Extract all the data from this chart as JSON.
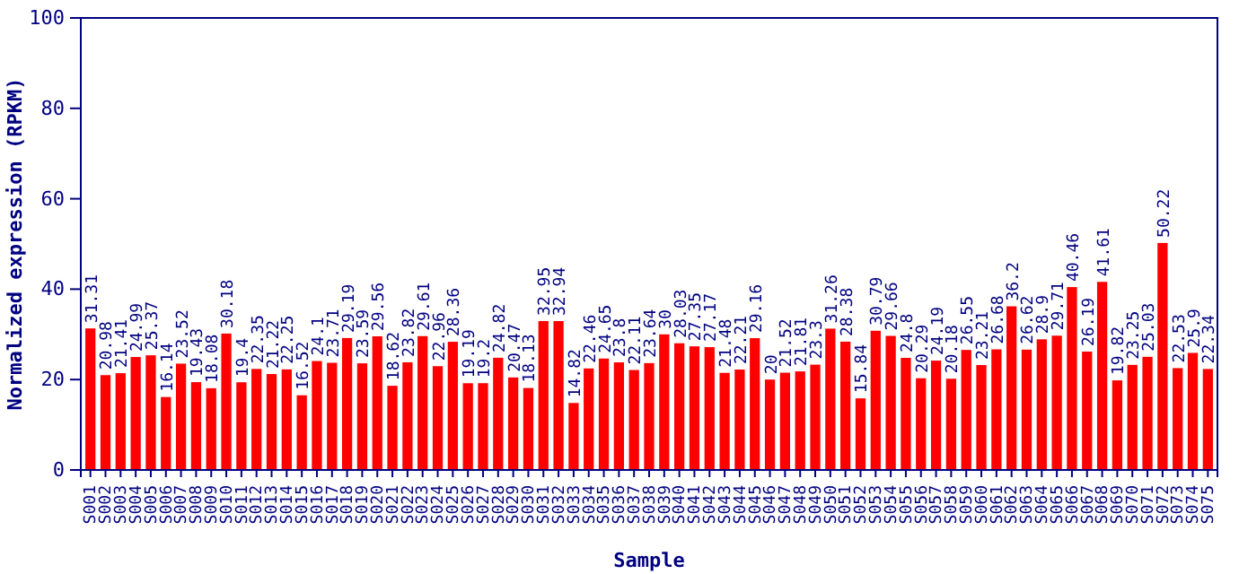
{
  "chart_data": {
    "type": "bar",
    "xlabel": "Sample",
    "ylabel": "Normalized expression (RPKM)",
    "categories": [
      "S001",
      "S002",
      "S003",
      "S004",
      "S005",
      "S006",
      "S007",
      "S008",
      "S009",
      "S010",
      "S011",
      "S012",
      "S013",
      "S014",
      "S015",
      "S016",
      "S017",
      "S018",
      "S019",
      "S020",
      "S021",
      "S022",
      "S023",
      "S024",
      "S025",
      "S026",
      "S027",
      "S028",
      "S029",
      "S030",
      "S031",
      "S032",
      "S033",
      "S034",
      "S035",
      "S036",
      "S037",
      "S038",
      "S039",
      "S040",
      "S041",
      "S042",
      "S043",
      "S044",
      "S045",
      "S046",
      "S047",
      "S048",
      "S049",
      "S050",
      "S051",
      "S052",
      "S053",
      "S054",
      "S055",
      "S056",
      "S057",
      "S058",
      "S059",
      "S060",
      "S061",
      "S062",
      "S063",
      "S064",
      "S065",
      "S066",
      "S067",
      "S068",
      "S069",
      "S070",
      "S071",
      "S072",
      "S073",
      "S074",
      "S075"
    ],
    "values": [
      31.31,
      20.98,
      21.41,
      24.99,
      25.37,
      16.14,
      23.52,
      19.43,
      18.08,
      30.18,
      19.4,
      22.35,
      21.22,
      22.25,
      16.52,
      24.1,
      23.71,
      29.19,
      23.59,
      29.56,
      18.62,
      23.82,
      29.61,
      22.96,
      28.36,
      19.19,
      19.2,
      24.82,
      20.47,
      18.13,
      32.95,
      32.94,
      14.82,
      22.46,
      24.65,
      23.8,
      22.11,
      23.64,
      30,
      28.03,
      27.35,
      27.17,
      21.48,
      22.21,
      29.16,
      20,
      21.52,
      21.81,
      23.3,
      31.26,
      28.38,
      15.84,
      30.79,
      29.66,
      24.8,
      20.29,
      24.19,
      20.18,
      26.55,
      23.21,
      26.68,
      36.2,
      26.62,
      28.9,
      29.71,
      40.46,
      26.19,
      41.61,
      19.82,
      23.25,
      25.03,
      50.22,
      22.53,
      25.9,
      22.34
    ],
    "color": "#ff0000",
    "data_labels": true,
    "ylim": [
      0,
      100
    ],
    "yticks": [
      0,
      20,
      40,
      60,
      80,
      100
    ]
  }
}
